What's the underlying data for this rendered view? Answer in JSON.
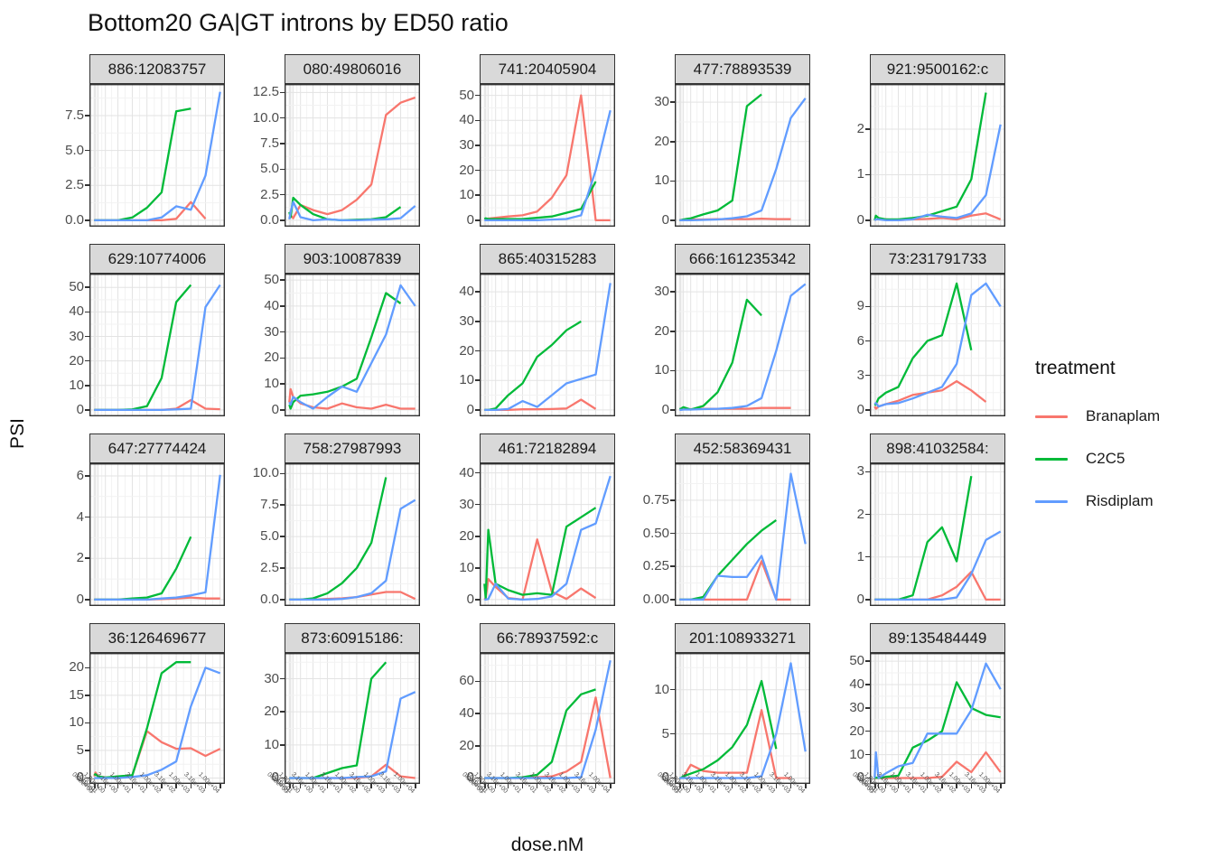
{
  "figure_title": "Bottom20 GA|GT introns by ED50 ratio",
  "axes": {
    "x_label": "dose.nM",
    "y_label": "PSI"
  },
  "legend": {
    "title": "treatment",
    "entries": [
      {
        "label": "Branaplam",
        "color": "#F8766D"
      },
      {
        "label": "C2C5",
        "color": "#00BA38"
      },
      {
        "label": "Risdiplam",
        "color": "#619CFF"
      }
    ]
  },
  "style": {
    "strip_fill": "#d9d9d9",
    "panel_border": "#333333",
    "grid_major": "#e3e3e3",
    "grid_minor": "#f2f2f2"
  },
  "chart_data": {
    "type": "line",
    "title": "Bottom20 GA|GT introns by ED50 ratio",
    "xlabel": "dose.nM",
    "ylabel": "PSI",
    "x_scale": "asinh",
    "x_doses": [
      0,
      0.1,
      0.316,
      1,
      3.16,
      10,
      31.6,
      100,
      316,
      1000,
      3160,
      10000
    ],
    "x_tick_labels": [
      "0.00e+00",
      "1.00e-01",
      "3.16e-01",
      "1.00e+00",
      "3.16e+00",
      "1.00e+01",
      "3.16e+01",
      "1.00e+02",
      "3.16e+02",
      "1.00e+03",
      "3.16e+03",
      "1.00e+04"
    ],
    "series_names": [
      "Branaplam",
      "C2C5",
      "Risdiplam"
    ],
    "facets": [
      {
        "label": "886:12083757",
        "y_ticks": [
          "0.0",
          "2.5",
          "5.0",
          "7.5"
        ],
        "y_max": 9.3,
        "series": {
          "Branaplam": [
            0,
            0,
            0,
            0,
            0,
            0,
            0,
            0,
            0.1,
            1.3,
            0.1,
            null
          ],
          "C2C5": [
            0,
            0,
            0,
            0,
            0,
            0.2,
            0.9,
            2,
            7.8,
            8,
            null,
            null
          ],
          "Risdiplam": [
            0,
            0,
            0,
            0,
            0,
            0,
            0,
            0.2,
            1,
            0.75,
            3.2,
            9.2
          ]
        }
      },
      {
        "label": "080:49806016",
        "y_ticks": [
          "0.0",
          "2.5",
          "5.0",
          "7.5",
          "10.0",
          "12.5"
        ],
        "y_max": 12.7,
        "series": {
          "Branaplam": [
            0.2,
            0.5,
            0.2,
            1.5,
            1.0,
            0.6,
            1.0,
            2.0,
            3.5,
            10.3,
            11.5,
            12.0
          ],
          "C2C5": [
            0.8,
            0.3,
            2.2,
            1.5,
            0.6,
            0.1,
            0,
            0.05,
            0.1,
            0.3,
            1.3,
            null
          ],
          "Risdiplam": [
            0.1,
            0.8,
            1.8,
            0.3,
            0,
            0.1,
            0,
            0,
            0.05,
            0.1,
            0.2,
            1.4
          ]
        }
      },
      {
        "label": "741:20405904",
        "y_ticks": [
          "0",
          "10",
          "20",
          "30",
          "40",
          "50"
        ],
        "y_max": 52,
        "series": {
          "Branaplam": [
            0.5,
            0.5,
            0.7,
            1,
            1.5,
            2,
            3.5,
            9,
            18,
            50,
            0,
            0
          ],
          "C2C5": [
            0.5,
            0.8,
            0.5,
            0.5,
            0.5,
            0.5,
            1,
            1.5,
            3,
            4.5,
            15.5,
            null
          ],
          "Risdiplam": [
            0,
            0,
            0,
            0,
            0,
            0,
            0,
            0.3,
            0.5,
            2,
            20,
            44
          ]
        }
      },
      {
        "label": "477:78893539",
        "y_ticks": [
          "0",
          "10",
          "20",
          "30"
        ],
        "y_max": 33,
        "series": {
          "Branaplam": [
            0,
            0.1,
            0.1,
            0.2,
            0.2,
            0.3,
            0.3,
            0.3,
            0.4,
            0.3,
            0.3,
            null
          ],
          "C2C5": [
            0,
            0,
            0.2,
            0.5,
            1.5,
            2.5,
            5,
            29,
            32,
            null,
            null,
            null
          ],
          "Risdiplam": [
            0,
            0,
            0,
            0,
            0.1,
            0.2,
            0.5,
            1,
            2.5,
            13,
            26,
            31
          ]
        }
      },
      {
        "label": "921:9500162:c",
        "y_ticks": [
          "0",
          "1",
          "2"
        ],
        "y_max": 2.85,
        "series": {
          "Branaplam": [
            0,
            0.02,
            0.02,
            0.02,
            0,
            0.02,
            0.03,
            0.05,
            0.02,
            0.1,
            0.15,
            0.02
          ],
          "C2C5": [
            0,
            0.1,
            0.05,
            0.02,
            0.02,
            0.05,
            0.1,
            0.2,
            0.3,
            0.9,
            2.8,
            null
          ],
          "Risdiplam": [
            0,
            0.02,
            0.02,
            0,
            0,
            0.02,
            0.12,
            0.08,
            0.05,
            0.15,
            0.55,
            2.1
          ]
        }
      },
      {
        "label": "629:10774006",
        "y_ticks": [
          "0",
          "10",
          "20",
          "30",
          "40",
          "50"
        ],
        "y_max": 53,
        "series": {
          "Branaplam": [
            0,
            0,
            0,
            0,
            0,
            0,
            0,
            0,
            0.5,
            4,
            0.5,
            0.3
          ],
          "C2C5": [
            0,
            0,
            0,
            0,
            0,
            0.2,
            1.5,
            13,
            44,
            51,
            null,
            null
          ],
          "Risdiplam": [
            0,
            0,
            0,
            0,
            0,
            0,
            0,
            0,
            0.2,
            0.5,
            42,
            51
          ]
        }
      },
      {
        "label": "903:10087839",
        "y_ticks": [
          "0",
          "10",
          "20",
          "30",
          "40",
          "50"
        ],
        "y_max": 50,
        "series": {
          "Branaplam": [
            3,
            8,
            5,
            2.5,
            1,
            0.5,
            2.5,
            1,
            0.5,
            2,
            0.5,
            0.5
          ],
          "C2C5": [
            2,
            0.5,
            3,
            5.5,
            6,
            7,
            9,
            12,
            28,
            45,
            41,
            null
          ],
          "Risdiplam": [
            3,
            2,
            5,
            3,
            0.5,
            5,
            9,
            7,
            18,
            29,
            48,
            40
          ]
        }
      },
      {
        "label": "865:40315283",
        "y_ticks": [
          "0",
          "10",
          "20",
          "30",
          "40"
        ],
        "y_max": 44,
        "series": {
          "Branaplam": [
            0,
            0,
            0,
            0,
            0,
            0.2,
            0.2,
            0.3,
            0.5,
            3.5,
            0.3,
            null
          ],
          "C2C5": [
            0,
            0,
            0,
            0.5,
            5,
            9,
            18,
            22,
            27,
            30,
            null,
            null
          ],
          "Risdiplam": [
            0,
            0,
            0,
            0,
            0.3,
            3,
            1,
            5,
            9,
            10.5,
            12,
            43
          ]
        }
      },
      {
        "label": "666:161235342",
        "y_ticks": [
          "0",
          "10",
          "20",
          "30"
        ],
        "y_max": 33,
        "series": {
          "Branaplam": [
            0,
            0.1,
            0.2,
            0.2,
            0.3,
            0.3,
            0.3,
            0.3,
            0.5,
            0.5,
            0.5,
            null
          ],
          "C2C5": [
            0.2,
            0.3,
            0.7,
            0.1,
            1,
            4.5,
            12,
            28,
            24,
            null,
            null,
            null
          ],
          "Risdiplam": [
            0,
            0,
            0.1,
            0.1,
            0.2,
            0.3,
            0.5,
            1,
            3,
            15,
            29,
            32
          ]
        }
      },
      {
        "label": "73:231791733",
        "y_ticks": [
          "0",
          "3",
          "6",
          "9"
        ],
        "y_max": 11.3,
        "series": {
          "Branaplam": [
            0.3,
            0.1,
            0.3,
            0.5,
            0.8,
            1.3,
            1.5,
            1.7,
            2.5,
            1.7,
            0.7,
            null
          ],
          "C2C5": [
            0.4,
            0.5,
            1,
            1.5,
            2,
            4.5,
            6,
            6.5,
            11,
            5.2,
            null,
            null
          ],
          "Risdiplam": [
            0.5,
            0.6,
            0.3,
            0.5,
            0.6,
            1,
            1.5,
            2,
            4,
            10,
            11,
            9
          ]
        }
      },
      {
        "label": "647:27774424",
        "y_ticks": [
          "0",
          "2",
          "4",
          "6"
        ],
        "y_max": 6.3,
        "series": {
          "Branaplam": [
            0,
            0,
            0,
            0,
            0,
            0,
            0,
            0.02,
            0.05,
            0.1,
            0.05,
            0.05
          ],
          "C2C5": [
            0,
            0,
            0,
            0,
            0,
            0.05,
            0.1,
            0.3,
            1.5,
            3.05,
            null,
            null
          ],
          "Risdiplam": [
            0,
            0,
            0,
            0,
            0,
            0,
            0,
            0.05,
            0.1,
            0.2,
            0.35,
            6.05
          ]
        }
      },
      {
        "label": "758:27987993",
        "y_ticks": [
          "0.0",
          "2.5",
          "5.0",
          "7.5",
          "10.0"
        ],
        "y_max": 10.3,
        "series": {
          "Branaplam": [
            0,
            0,
            0,
            0,
            0,
            0.05,
            0.1,
            0.2,
            0.4,
            0.6,
            0.6,
            0.05
          ],
          "C2C5": [
            0,
            0,
            0,
            0,
            0.1,
            0.5,
            1.3,
            2.5,
            4.5,
            9.7,
            null,
            null
          ],
          "Risdiplam": [
            0,
            0,
            0,
            0,
            0,
            0,
            0.05,
            0.2,
            0.5,
            1.5,
            7.2,
            7.9
          ]
        }
      },
      {
        "label": "461:72182894",
        "y_ticks": [
          "0",
          "10",
          "20",
          "30",
          "40"
        ],
        "y_max": 41,
        "series": {
          "Branaplam": [
            0,
            0.5,
            6.5,
            4,
            0.5,
            0,
            19,
            2.5,
            0.2,
            3.5,
            0.5,
            null
          ],
          "C2C5": [
            5,
            0.5,
            22,
            5,
            3,
            1.5,
            2,
            1.5,
            23,
            26,
            29,
            null
          ],
          "Risdiplam": [
            0,
            0,
            0.2,
            5,
            0.3,
            0,
            0.2,
            1,
            5,
            22,
            24,
            39
          ]
        }
      },
      {
        "label": "452:58369431",
        "y_ticks": [
          "0.00",
          "0.25",
          "0.50",
          "0.75"
        ],
        "y_max": 0.98,
        "series": {
          "Branaplam": [
            0,
            0,
            0,
            0,
            0,
            0,
            0,
            0,
            0.29,
            0,
            0,
            null
          ],
          "C2C5": [
            0,
            0,
            0,
            0,
            0.02,
            0.18,
            0.3,
            0.42,
            0.52,
            0.6,
            null,
            null
          ],
          "Risdiplam": [
            0,
            0,
            0,
            0,
            0,
            0.18,
            0.17,
            0.17,
            0.33,
            0,
            0.95,
            0.42
          ]
        }
      },
      {
        "label": "898:41032584:",
        "y_ticks": [
          "0",
          "1",
          "2",
          "3"
        ],
        "y_max": 3.05,
        "series": {
          "Branaplam": [
            0,
            0,
            0,
            0,
            0,
            0,
            0,
            0.1,
            0.3,
            0.65,
            0,
            0
          ],
          "C2C5": [
            0,
            0,
            0,
            0,
            0,
            0.1,
            1.35,
            1.7,
            0.9,
            2.9,
            null,
            null
          ],
          "Risdiplam": [
            0,
            0,
            0,
            0,
            0,
            0,
            0,
            0,
            0.05,
            0.6,
            1.4,
            1.6
          ]
        }
      },
      {
        "label": "36:126469677",
        "y_ticks": [
          "0",
          "5",
          "10",
          "15",
          "20"
        ],
        "y_max": 21.6,
        "series": {
          "Branaplam": [
            0.3,
            1,
            0.3,
            0.1,
            0.2,
            0.5,
            8.5,
            6.5,
            5.3,
            5.4,
            4,
            5.3
          ],
          "C2C5": [
            0.5,
            0.7,
            0.3,
            0.1,
            0.3,
            0.5,
            9,
            19,
            21,
            21,
            null,
            null
          ],
          "Risdiplam": [
            0,
            0,
            0,
            0,
            0,
            0.2,
            0.5,
            1.5,
            3,
            13,
            20,
            19
          ]
        }
      },
      {
        "label": "873:60915186:",
        "y_ticks": [
          "0",
          "10",
          "20",
          "30"
        ],
        "y_max": 36,
        "series": {
          "Branaplam": [
            0,
            0,
            0,
            0,
            0,
            0,
            0,
            0,
            0.5,
            4,
            0.5,
            0
          ],
          "C2C5": [
            0,
            0,
            0,
            0,
            0,
            1.5,
            3,
            3.8,
            30,
            35,
            null,
            null
          ],
          "Risdiplam": [
            0,
            0,
            0,
            0,
            0,
            0,
            0,
            0.3,
            0.5,
            2,
            24,
            26
          ]
        }
      },
      {
        "label": "66:78937592:c",
        "y_ticks": [
          "0",
          "20",
          "40",
          "60"
        ],
        "y_max": 74,
        "series": {
          "Branaplam": [
            0,
            0,
            0,
            0,
            0,
            0,
            0.5,
            1,
            4,
            10,
            50,
            0
          ],
          "C2C5": [
            0,
            0,
            0,
            0,
            0,
            0.5,
            2,
            10,
            42,
            52,
            55,
            null
          ],
          "Risdiplam": [
            0,
            0,
            0,
            0,
            0,
            0,
            0,
            0,
            0,
            0.5,
            30,
            73
          ]
        }
      },
      {
        "label": "201:108933271",
        "y_ticks": [
          "0",
          "5",
          "10"
        ],
        "y_max": 13.5,
        "series": {
          "Branaplam": [
            0,
            0,
            0.1,
            1.5,
            0.8,
            0.6,
            0.6,
            0.6,
            7.7,
            0,
            0,
            null
          ],
          "C2C5": [
            0,
            0,
            0.2,
            0.5,
            1,
            2,
            3.5,
            6,
            11,
            3.3,
            null,
            null
          ],
          "Risdiplam": [
            0,
            0,
            0,
            0,
            0,
            0,
            0,
            0,
            0.2,
            5,
            13,
            3
          ]
        }
      },
      {
        "label": "89:135484449",
        "y_ticks": [
          "0",
          "10",
          "20",
          "30",
          "40",
          "50"
        ],
        "y_max": 51,
        "series": {
          "Branaplam": [
            0,
            0,
            0,
            0,
            0,
            0,
            0,
            0.5,
            7,
            2.5,
            11,
            2.5
          ],
          "C2C5": [
            0,
            0.2,
            0,
            0.5,
            1,
            13,
            16,
            20,
            41,
            30,
            27,
            26
          ],
          "Risdiplam": [
            0,
            11,
            0,
            2,
            5,
            6.5,
            19,
            19,
            19,
            29,
            49,
            38
          ]
        }
      }
    ]
  }
}
